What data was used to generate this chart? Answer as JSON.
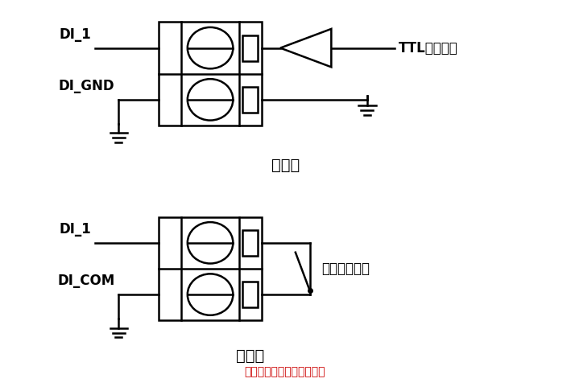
{
  "title": "数字量输入信号接线示意图",
  "title_color": "#cc0000",
  "background_color": "#ffffff",
  "line_color": "#000000",
  "lw": 1.8,
  "top": {
    "label1": "DI_1",
    "label2": "DI_GND",
    "ttl_label": "TTL电平输入",
    "caption": "湿接点"
  },
  "bot": {
    "label1": "DI_1",
    "label2": "DI_COM",
    "switch_label": "开关信号输入",
    "caption": "干接点"
  }
}
